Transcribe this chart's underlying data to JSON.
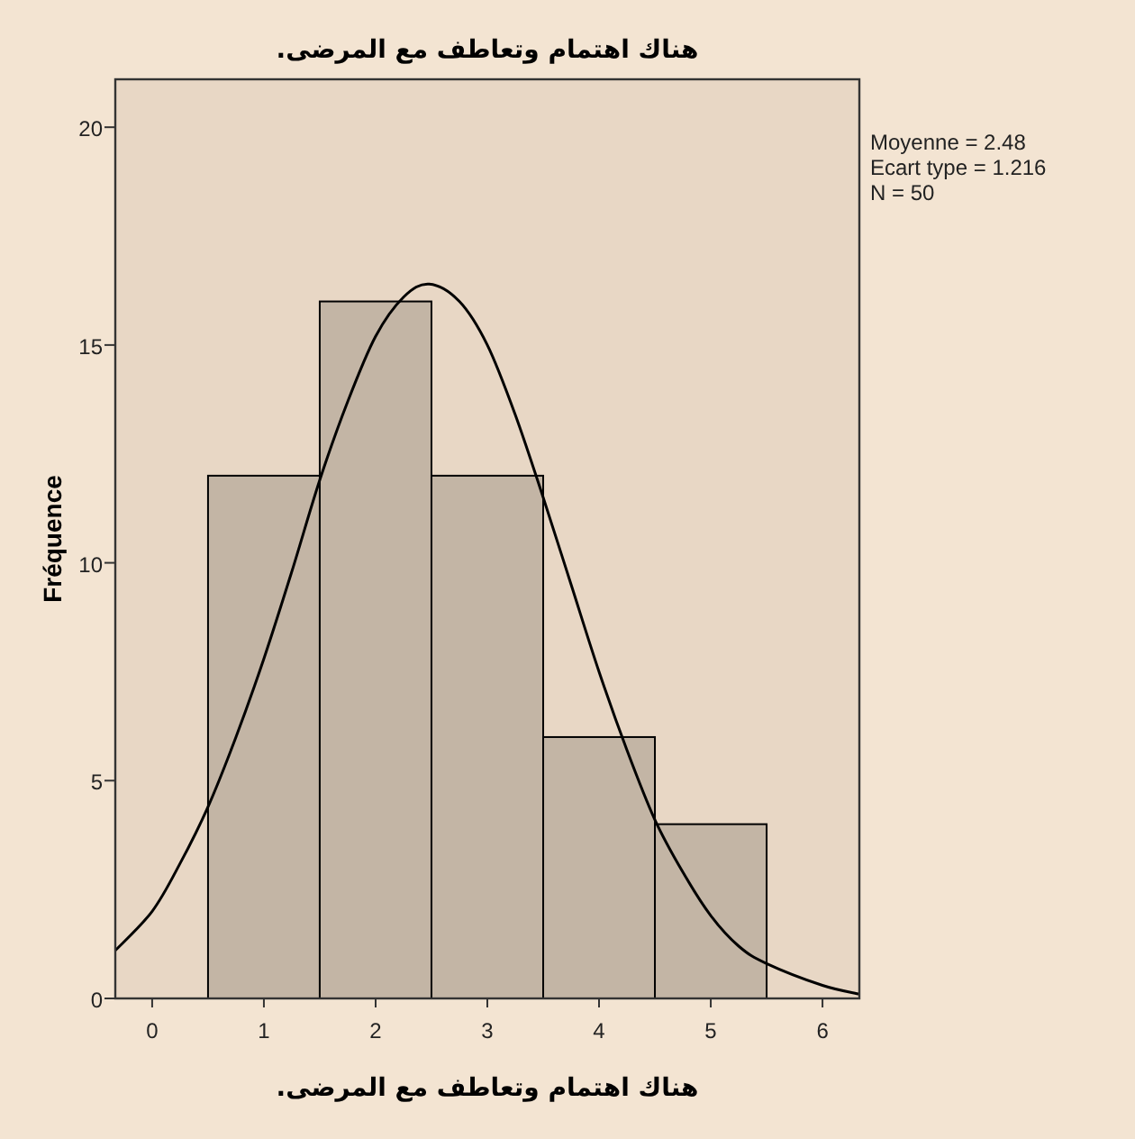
{
  "chart_data": {
    "type": "histogram",
    "title": "هناك اهتمام وتعاطف مع المرضى.",
    "xlabel": "هناك اهتمام وتعاطف مع المرضى.",
    "ylabel": "Fréquence",
    "bins": [
      0.5,
      1.5,
      2.5,
      3.5,
      4.5,
      5.5
    ],
    "values": [
      12,
      16,
      12,
      6,
      4
    ],
    "color": "#c3b5a5",
    "series": [
      {
        "type": "line",
        "color": "#000000",
        "x": [
          -0.33,
          0,
          0.25,
          0.5,
          0.75,
          1,
          1.25,
          1.5,
          1.75,
          2,
          2.25,
          2.48,
          2.75,
          3,
          3.25,
          3.5,
          3.75,
          4,
          4.25,
          4.5,
          4.75,
          5,
          5.25,
          5.5,
          6,
          6.33
        ],
        "values": [
          1.1,
          2.0,
          3.1,
          4.4,
          6.0,
          7.8,
          9.8,
          11.9,
          13.7,
          15.2,
          16.1,
          16.4,
          16.0,
          15.0,
          13.4,
          11.5,
          9.5,
          7.5,
          5.7,
          4.1,
          2.9,
          1.9,
          1.2,
          0.8,
          0.3,
          0.1
        ]
      }
    ],
    "xlim": [
      -0.33,
      6.33
    ],
    "ylim": [
      0,
      21.1
    ],
    "xticks": [
      0,
      1,
      2,
      3,
      4,
      5,
      6
    ],
    "yticks": [
      0,
      5,
      10,
      15,
      20
    ],
    "annotations": [
      "Moyenne = 2.48",
      "Ecart type = 1.216",
      "N = 50"
    ]
  }
}
